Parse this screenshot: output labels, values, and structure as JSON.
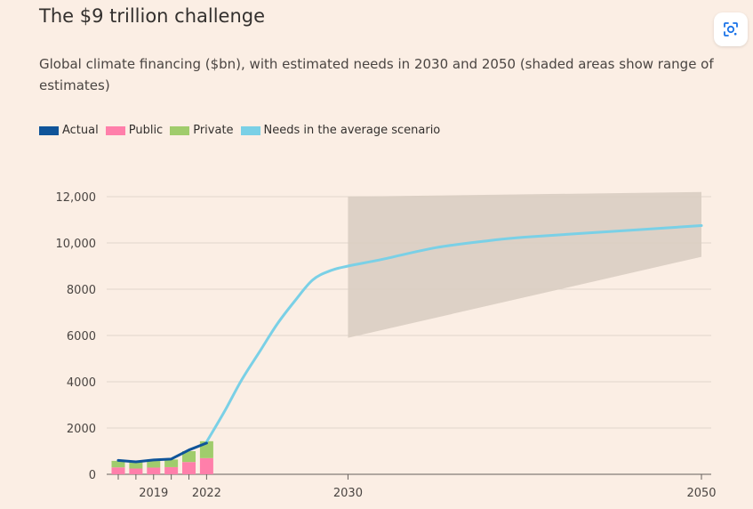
{
  "title": "The $9 trillion challenge",
  "subtitle": "Global climate financing ($bn), with estimated needs in 2030 and 2050 (shaded areas show range of estimates)",
  "icons": {
    "lens": "google-lens-icon"
  },
  "legend": [
    {
      "label": "Actual",
      "color": "#0f5499"
    },
    {
      "label": "Public",
      "color": "#ff7faa"
    },
    {
      "label": "Private",
      "color": "#a0cc6c"
    },
    {
      "label": "Needs in the average scenario",
      "color": "#7ad0e6"
    }
  ],
  "chart_data": {
    "type": "bar",
    "title": "The $9 trillion challenge",
    "subtitle": "Global climate financing ($bn), with estimated needs in 2030 and 2050 (shaded areas show range of estimates)",
    "xlabel": "",
    "ylabel": "",
    "ylim": [
      0,
      12000
    ],
    "xlim": [
      2016.5,
      2050
    ],
    "y_ticks": [
      0,
      2000,
      4000,
      6000,
      8000,
      10000,
      12000
    ],
    "y_tick_labels": [
      "0",
      "2000",
      "4000",
      "6000",
      "8000",
      "10,000",
      "12,000"
    ],
    "x_tick_labels": [
      {
        "x": 2019,
        "label": "2019"
      },
      {
        "x": 2022,
        "label": "2022"
      },
      {
        "x": 2030,
        "label": "2030"
      },
      {
        "x": 2050,
        "label": "2050"
      }
    ],
    "x_minor_ticks": [
      2017,
      2018,
      2019,
      2020,
      2021,
      2022,
      2030,
      2050
    ],
    "grid": true,
    "legend_position": "top-left",
    "stacked_bars": {
      "categories": [
        2017,
        2018,
        2019,
        2020,
        2021,
        2022
      ],
      "series": [
        {
          "name": "Public",
          "color": "#ff7faa",
          "values": [
            300,
            250,
            290,
            310,
            530,
            700
          ]
        },
        {
          "name": "Private",
          "color": "#a0cc6c",
          "values": [
            280,
            270,
            310,
            330,
            470,
            730
          ]
        }
      ]
    },
    "actual": {
      "name": "Actual",
      "color": "#0f5499",
      "x": [
        2017,
        2018,
        2019,
        2020,
        2021,
        2022
      ],
      "y": [
        600,
        540,
        620,
        660,
        1050,
        1350
      ]
    },
    "needs": {
      "name": "Needs in the average scenario",
      "color": "#7ad0e6",
      "x": [
        2022,
        2023,
        2024,
        2025,
        2026,
        2027,
        2028,
        2029,
        2030,
        2032,
        2035,
        2038,
        2040,
        2045,
        2050
      ],
      "y": [
        1400,
        2700,
        4100,
        5300,
        6500,
        7500,
        8400,
        8800,
        9000,
        9300,
        9800,
        10100,
        10250,
        10500,
        10750
      ]
    },
    "range_band": {
      "color": "#d9cdc2",
      "x": [
        2030,
        2050
      ],
      "low": [
        5900,
        9400
      ],
      "high": [
        12000,
        12200
      ]
    }
  }
}
